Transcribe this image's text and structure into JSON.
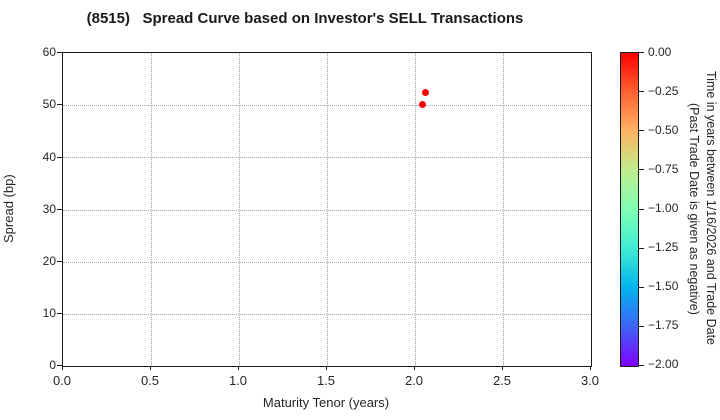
{
  "chart_data": {
    "type": "scatter",
    "title": "(8515)   Spread Curve based on Investor's SELL Transactions",
    "xlabel": "Maturity Tenor (years)",
    "ylabel": "Spread (bp)",
    "xlim": [
      0.0,
      3.0
    ],
    "ylim": [
      0,
      60
    ],
    "grid": true,
    "xticks": [
      "0.0",
      "0.5",
      "1.0",
      "1.5",
      "2.0",
      "2.5",
      "3.0"
    ],
    "yticks": [
      "60",
      "50",
      "40",
      "30",
      "20",
      "10",
      "0"
    ],
    "points": [
      {
        "x": 2.04,
        "y": 50.2,
        "color": "#ff0000",
        "time_value": 0.0
      },
      {
        "x": 2.06,
        "y": 52.4,
        "color": "#ff0000",
        "time_value": 0.0
      }
    ],
    "colorbar": {
      "range_top": 0.0,
      "range_bottom": -2.0,
      "ticks": [
        "0.00",
        "−0.25",
        "−0.50",
        "−0.75",
        "−1.00",
        "−1.25",
        "−1.50",
        "−1.75",
        "−2.00"
      ],
      "label_line1": "Time in years between 1/16/2026 and Trade Date",
      "label_line2": "(Past Trade Date is given as negative)",
      "colormap": "rainbow",
      "gradient_stops": [
        "#ff0000",
        "#ff6232",
        "#ffb462",
        "#bfec8e",
        "#80ffb4",
        "#40ecd4",
        "#00b4ec",
        "#4062fa",
        "#8000ff"
      ]
    },
    "colors": {
      "point": "#ff0000",
      "grid": "#a6a6a6",
      "spine": "#1a1a1a",
      "text": "#262626"
    }
  }
}
